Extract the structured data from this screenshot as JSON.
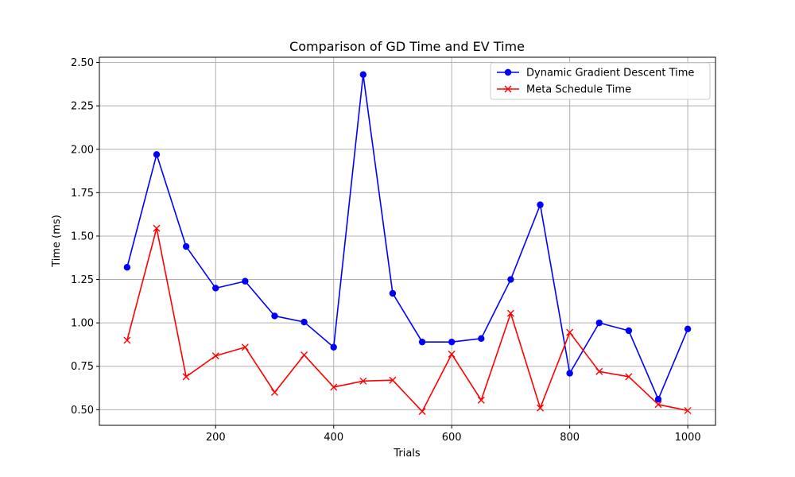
{
  "chart_data": {
    "type": "line",
    "title": "Comparison of GD Time and EV Time",
    "xlabel": "Trials",
    "ylabel": "Time (ms)",
    "x": [
      50,
      100,
      150,
      200,
      250,
      300,
      350,
      400,
      450,
      500,
      550,
      600,
      650,
      700,
      750,
      800,
      850,
      900,
      950,
      1000
    ],
    "xlim": [
      3,
      1047
    ],
    "ylim": [
      0.41,
      2.53
    ],
    "x_ticks": [
      "200",
      "400",
      "600",
      "800",
      "1000"
    ],
    "y_ticks": [
      "0.50",
      "0.75",
      "1.00",
      "1.25",
      "1.50",
      "1.75",
      "2.00",
      "2.25",
      "2.50"
    ],
    "grid": true,
    "legend_position": "top-right",
    "series": [
      {
        "name": "Dynamic Gradient Descent Time",
        "color": "#0000ff",
        "marker": "circle",
        "values": [
          1.32,
          1.97,
          1.44,
          1.2,
          1.24,
          1.04,
          1.005,
          0.86,
          2.43,
          1.17,
          0.89,
          0.89,
          0.91,
          1.25,
          1.68,
          0.71,
          1.0,
          0.955,
          0.56,
          0.965
        ]
      },
      {
        "name": "Meta Schedule Time",
        "color": "#ff0000",
        "marker": "x",
        "values": [
          0.9,
          1.545,
          0.69,
          0.81,
          0.86,
          0.6,
          0.815,
          0.63,
          0.665,
          0.67,
          0.49,
          0.82,
          0.555,
          1.055,
          0.51,
          0.945,
          0.72,
          0.69,
          0.53,
          0.495
        ]
      }
    ]
  }
}
